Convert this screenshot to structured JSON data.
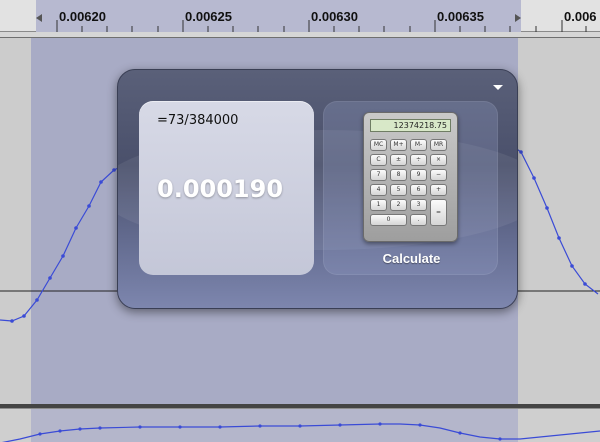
{
  "ruler": {
    "ticks": [
      "0.00620",
      "0.00625",
      "0.00630",
      "0.00635",
      "0.006"
    ]
  },
  "widget": {
    "expression": "=73/384000",
    "result": "0.000190",
    "calculator_display": "12374218.75",
    "calculate_label": "Calculate",
    "keys": [
      "MC",
      "M+",
      "M-",
      "MR",
      "C",
      "±",
      "÷",
      "×",
      "7",
      "8",
      "9",
      "−",
      "4",
      "5",
      "6",
      "+",
      "1",
      "2",
      "3",
      "0",
      ".",
      "="
    ]
  },
  "colors": {
    "selection": "#a8abc5",
    "waveform": "#3a4bd6"
  }
}
